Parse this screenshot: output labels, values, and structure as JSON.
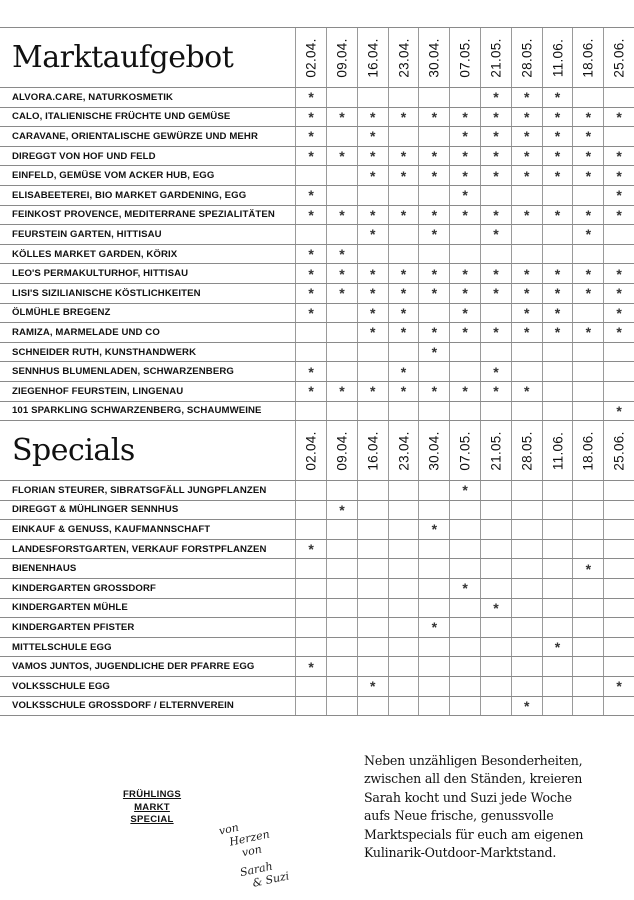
{
  "dates": [
    "02.04.",
    "09.04.",
    "16.04.",
    "23.04.",
    "30.04.",
    "07.05.",
    "21.05.",
    "28.05.",
    "11.06.",
    "18.06.",
    "25.06."
  ],
  "mark": "*",
  "market": {
    "title": "Marktaufgebot",
    "rows": [
      {
        "name": "ALVORA.CARE, NATURKOSMETIK",
        "days": [
          0,
          6,
          7,
          8
        ]
      },
      {
        "name": "CALO, ITALIENISCHE FRÜCHTE UND GEMÜSE",
        "days": [
          0,
          1,
          2,
          3,
          4,
          5,
          6,
          7,
          8,
          9,
          10
        ]
      },
      {
        "name": "CARAVANE, ORIENTALISCHE GEWÜRZE UND MEHR",
        "days": [
          0,
          2,
          5,
          6,
          7,
          8,
          9
        ]
      },
      {
        "name": "DIREGGT VON HOF UND FELD",
        "days": [
          0,
          1,
          2,
          3,
          4,
          5,
          6,
          7,
          8,
          9,
          10
        ]
      },
      {
        "name": "EINFELD, GEMÜSE VOM ACKER HUB, EGG",
        "days": [
          2,
          3,
          4,
          5,
          6,
          7,
          8,
          9,
          10
        ]
      },
      {
        "name": "ELISABEETEREI, BIO MARKET GARDENING, EGG",
        "days": [
          0,
          5,
          10
        ]
      },
      {
        "name": "FEINKOST PROVENCE, MEDITERRANE SPEZIALITÄTEN",
        "days": [
          0,
          1,
          2,
          3,
          4,
          5,
          6,
          7,
          8,
          9,
          10
        ]
      },
      {
        "name": "FEURSTEIN GARTEN, HITTISAU",
        "days": [
          2,
          4,
          6,
          9
        ]
      },
      {
        "name": "KÖLLES MARKET GARDEN, KÖRIX",
        "days": [
          0,
          1
        ]
      },
      {
        "name": "LEO'S PERMAKULTURHOF, HITTISAU",
        "days": [
          0,
          1,
          2,
          3,
          4,
          5,
          6,
          7,
          8,
          9,
          10
        ]
      },
      {
        "name": "LISI'S SIZILIANISCHE KÖSTLICHKEITEN",
        "days": [
          0,
          1,
          2,
          3,
          4,
          5,
          6,
          7,
          8,
          9,
          10
        ]
      },
      {
        "name": "ÖLMÜHLE BREGENZ",
        "days": [
          0,
          2,
          3,
          5,
          7,
          8,
          10
        ]
      },
      {
        "name": "RAMIZA, MARMELADE UND CO",
        "days": [
          2,
          3,
          4,
          5,
          6,
          7,
          8,
          9,
          10
        ]
      },
      {
        "name": "SCHNEIDER RUTH, KUNSTHANDWERK",
        "days": [
          4
        ]
      },
      {
        "name": "SENNHUS BLUMENLADEN, SCHWARZENBERG",
        "days": [
          0,
          3,
          6
        ]
      },
      {
        "name": "ZIEGENHOF FEURSTEIN, LINGENAU",
        "days": [
          0,
          1,
          2,
          3,
          4,
          5,
          6,
          7
        ]
      },
      {
        "name": "101 SPARKLING SCHWARZENBERG, SCHAUMWEINE",
        "days": [
          10
        ]
      }
    ]
  },
  "specials": {
    "title": "Specials",
    "rows": [
      {
        "name": "FLORIAN STEURER, SIBRATSGFÄLL JUNGPFLANZEN",
        "days": [
          5
        ]
      },
      {
        "name": "DIREGGT & MÜHLINGER SENNHUS",
        "days": [
          1
        ]
      },
      {
        "name": "EINKAUF & GENUSS, KAUFMANNSCHAFT",
        "days": [
          4
        ]
      },
      {
        "name": "LANDESFORSTGARTEN, VERKAUF FORSTPFLANZEN",
        "days": [
          0
        ]
      },
      {
        "name": "BIENENHAUS",
        "days": [
          9
        ]
      },
      {
        "name": "KINDERGARTEN GROSSDORF",
        "days": [
          5
        ]
      },
      {
        "name": "KINDERGARTEN MÜHLE",
        "days": [
          6
        ]
      },
      {
        "name": "KINDERGARTEN PFISTER",
        "days": [
          4
        ]
      },
      {
        "name": "MITTELSCHULE EGG",
        "days": [
          8
        ]
      },
      {
        "name": "VAMOS JUNTOS, JUGENDLICHE DER PFARRE EGG",
        "days": [
          0
        ]
      },
      {
        "name": "VOLKSSCHULE EGG",
        "days": [
          2,
          10
        ]
      },
      {
        "name": "VOLKSSCHULE GROSSDORF / ELTERNVEREIN",
        "days": [
          7
        ]
      }
    ]
  },
  "footer": {
    "stamp": [
      "FRÜHLINGS",
      "MARKT",
      "SPECIAL"
    ],
    "signature": [
      "von",
      "Herzen",
      "von",
      "Sarah",
      "& Suzi"
    ],
    "blurb": [
      "Neben unzähligen Besonderheiten,",
      "zwischen all den Ständen, kreieren",
      "Sarah kocht und Suzi jede Woche",
      "aufs Neue frische, genussvolle",
      "Marktspecials für euch am eigenen",
      "Kulinarik-Outdoor-Marktstand."
    ]
  }
}
